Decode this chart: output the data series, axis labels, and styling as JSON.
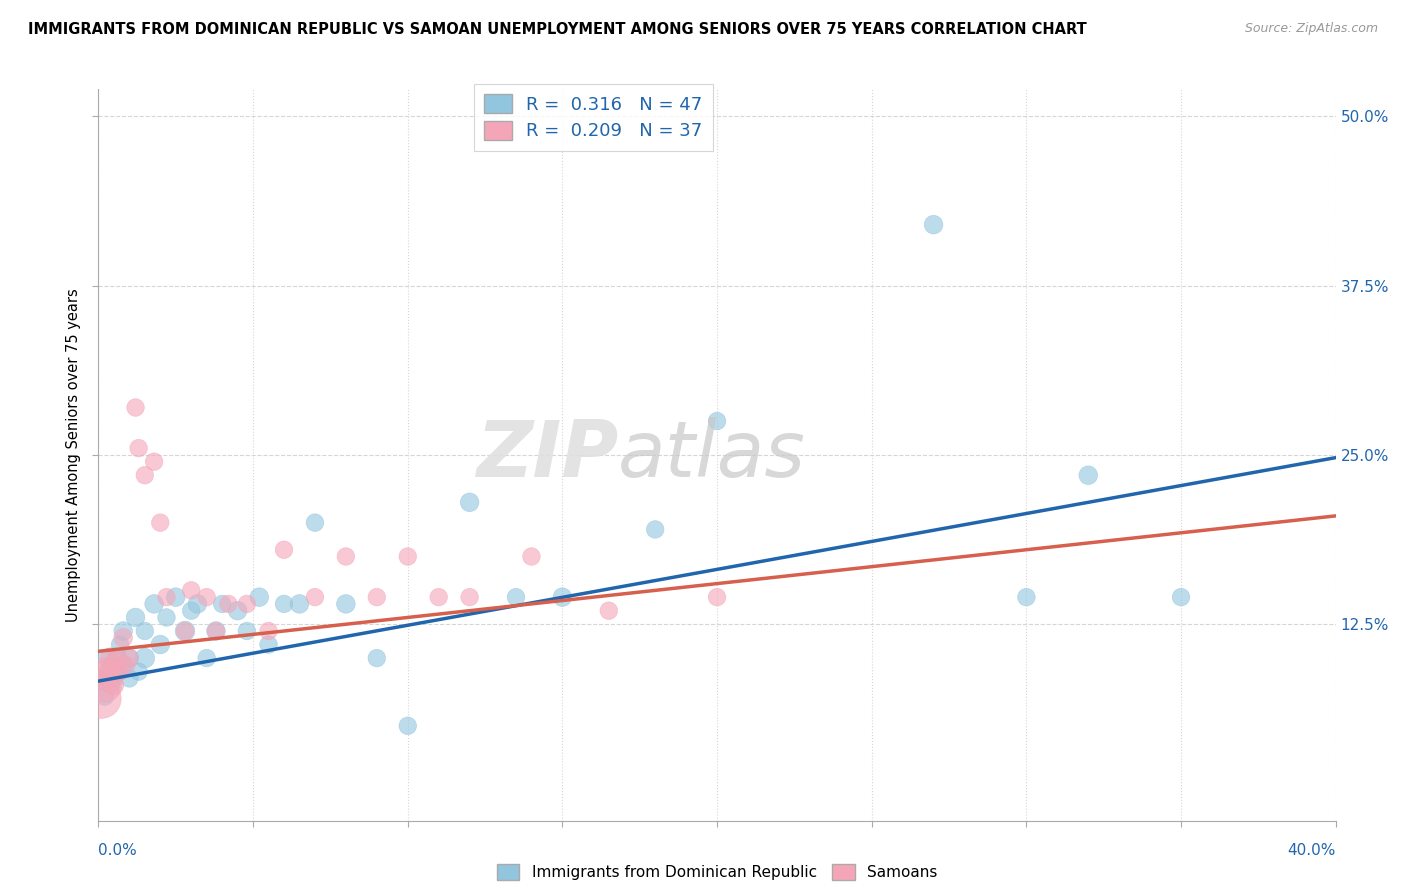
{
  "title": "IMMIGRANTS FROM DOMINICAN REPUBLIC VS SAMOAN UNEMPLOYMENT AMONG SENIORS OVER 75 YEARS CORRELATION CHART",
  "source": "Source: ZipAtlas.com",
  "ylabel": "Unemployment Among Seniors over 75 years",
  "ytick_labels": [
    "12.5%",
    "25.0%",
    "37.5%",
    "50.0%"
  ],
  "ytick_vals": [
    0.125,
    0.25,
    0.375,
    0.5
  ],
  "legend1_label": "R =  0.316   N = 47",
  "legend2_label": "R =  0.209   N = 37",
  "blue_color": "#92c5de",
  "pink_color": "#f4a6b8",
  "blue_line_color": "#2166ac",
  "pink_line_color": "#d6604d",
  "xlim": [
    0.0,
    0.4
  ],
  "ylim": [
    -0.02,
    0.52
  ],
  "blue_scatter_x": [
    0.001,
    0.002,
    0.003,
    0.003,
    0.004,
    0.005,
    0.005,
    0.006,
    0.006,
    0.007,
    0.008,
    0.008,
    0.01,
    0.01,
    0.012,
    0.013,
    0.015,
    0.015,
    0.018,
    0.02,
    0.022,
    0.025,
    0.028,
    0.03,
    0.032,
    0.035,
    0.038,
    0.04,
    0.045,
    0.048,
    0.052,
    0.055,
    0.06,
    0.065,
    0.07,
    0.08,
    0.09,
    0.1,
    0.12,
    0.135,
    0.15,
    0.18,
    0.2,
    0.27,
    0.3,
    0.32,
    0.35
  ],
  "blue_scatter_y": [
    0.083,
    0.072,
    0.09,
    0.1,
    0.08,
    0.095,
    0.085,
    0.1,
    0.09,
    0.11,
    0.095,
    0.12,
    0.1,
    0.085,
    0.13,
    0.09,
    0.1,
    0.12,
    0.14,
    0.11,
    0.13,
    0.145,
    0.12,
    0.135,
    0.14,
    0.1,
    0.12,
    0.14,
    0.135,
    0.12,
    0.145,
    0.11,
    0.14,
    0.14,
    0.2,
    0.14,
    0.1,
    0.05,
    0.215,
    0.145,
    0.145,
    0.195,
    0.275,
    0.42,
    0.145,
    0.235,
    0.145
  ],
  "blue_scatter_size": [
    200,
    180,
    160,
    180,
    160,
    170,
    160,
    200,
    180,
    160,
    160,
    180,
    180,
    160,
    180,
    160,
    200,
    160,
    180,
    180,
    160,
    180,
    200,
    160,
    180,
    160,
    180,
    160,
    180,
    160,
    180,
    160,
    160,
    180,
    160,
    180,
    160,
    160,
    180,
    160,
    180,
    160,
    160,
    180,
    160,
    180,
    160
  ],
  "pink_scatter_x": [
    0.001,
    0.002,
    0.002,
    0.003,
    0.003,
    0.004,
    0.005,
    0.005,
    0.006,
    0.006,
    0.007,
    0.008,
    0.009,
    0.01,
    0.012,
    0.013,
    0.015,
    0.018,
    0.02,
    0.022,
    0.028,
    0.03,
    0.035,
    0.038,
    0.042,
    0.048,
    0.055,
    0.06,
    0.07,
    0.08,
    0.09,
    0.1,
    0.11,
    0.12,
    0.14,
    0.165,
    0.2
  ],
  "pink_scatter_y": [
    0.07,
    0.08,
    0.09,
    0.09,
    0.085,
    0.1,
    0.095,
    0.08,
    0.1,
    0.09,
    0.09,
    0.115,
    0.095,
    0.1,
    0.285,
    0.255,
    0.235,
    0.245,
    0.2,
    0.145,
    0.12,
    0.15,
    0.145,
    0.12,
    0.14,
    0.14,
    0.12,
    0.18,
    0.145,
    0.175,
    0.145,
    0.175,
    0.145,
    0.145,
    0.175,
    0.135,
    0.145
  ],
  "pink_scatter_size": [
    800,
    600,
    400,
    300,
    250,
    220,
    200,
    200,
    180,
    160,
    160,
    180,
    160,
    160,
    160,
    160,
    160,
    160,
    160,
    160,
    160,
    160,
    160,
    160,
    160,
    160,
    160,
    160,
    160,
    160,
    160,
    160,
    160,
    160,
    160,
    160,
    160
  ],
  "blue_line_x": [
    0.0,
    0.4
  ],
  "blue_line_y": [
    0.083,
    0.248
  ],
  "pink_line_x": [
    0.0,
    0.4
  ],
  "pink_line_y": [
    0.105,
    0.205
  ],
  "bottom_legend1": "Immigrants from Dominican Republic",
  "bottom_legend2": "Samoans"
}
